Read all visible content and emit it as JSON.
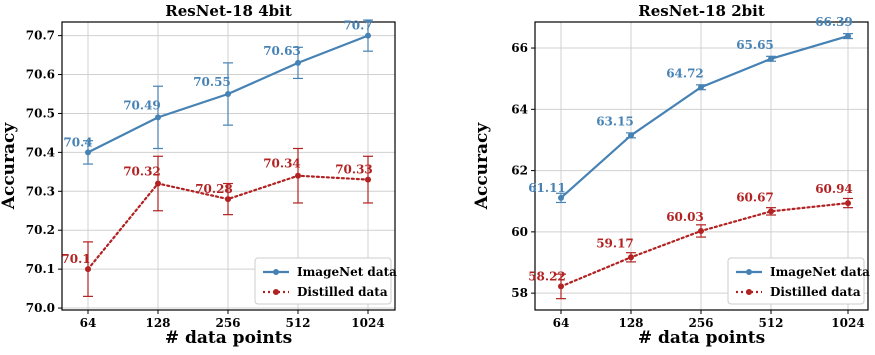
{
  "colors": {
    "imagenet": "#4682b4",
    "distilled": "#b22222",
    "grid": "#d0d0d0"
  },
  "chart_data": [
    {
      "type": "line",
      "title": "ResNet-18 4bit",
      "xlabel": "# data points",
      "ylabel": "Accuracy",
      "categories": [
        "64",
        "128",
        "256",
        "512",
        "1024"
      ],
      "ylim": [
        69.995,
        70.735
      ],
      "yticks": [
        "70.0",
        "70.1",
        "70.2",
        "70.3",
        "70.4",
        "70.5",
        "70.6",
        "70.7"
      ],
      "grid": true,
      "legend_position": "lower-right",
      "series": [
        {
          "name": "ImageNet data",
          "color": "#4682b4",
          "style": "solid",
          "values": [
            70.4,
            70.49,
            70.55,
            70.63,
            70.7
          ],
          "errors": [
            0.03,
            0.08,
            0.08,
            0.04,
            0.04
          ],
          "labels": [
            "70.4",
            "70.49",
            "70.55",
            "70.63",
            "70.7"
          ]
        },
        {
          "name": "Distilled data",
          "color": "#b22222",
          "style": "dotted",
          "values": [
            70.1,
            70.32,
            70.28,
            70.34,
            70.33
          ],
          "errors": [
            0.07,
            0.07,
            0.04,
            0.07,
            0.06
          ],
          "labels": [
            "70.1",
            "70.32",
            "70.28",
            "70.34",
            "70.33"
          ]
        }
      ]
    },
    {
      "type": "line",
      "title": "ResNet-18 2bit",
      "xlabel": "# data points",
      "ylabel": "Accuracy",
      "categories": [
        "64",
        "128",
        "256",
        "512",
        "1024"
      ],
      "ylim": [
        57.45,
        66.85
      ],
      "yticks": [
        "58",
        "60",
        "62",
        "64",
        "66"
      ],
      "grid": true,
      "legend_position": "lower-right",
      "series": [
        {
          "name": "ImageNet data",
          "color": "#4682b4",
          "style": "solid",
          "values": [
            61.11,
            63.15,
            64.72,
            65.65,
            66.39
          ],
          "errors": [
            0.15,
            0.08,
            0.08,
            0.08,
            0.08
          ],
          "labels": [
            "61.11",
            "63.15",
            "64.72",
            "65.65",
            "66.39"
          ]
        },
        {
          "name": "Distilled data",
          "color": "#b22222",
          "style": "dotted",
          "values": [
            58.22,
            59.17,
            60.03,
            60.67,
            60.94
          ],
          "errors": [
            0.4,
            0.15,
            0.2,
            0.12,
            0.15
          ],
          "labels": [
            "58.22",
            "59.17",
            "60.03",
            "60.67",
            "60.94"
          ]
        }
      ]
    }
  ]
}
